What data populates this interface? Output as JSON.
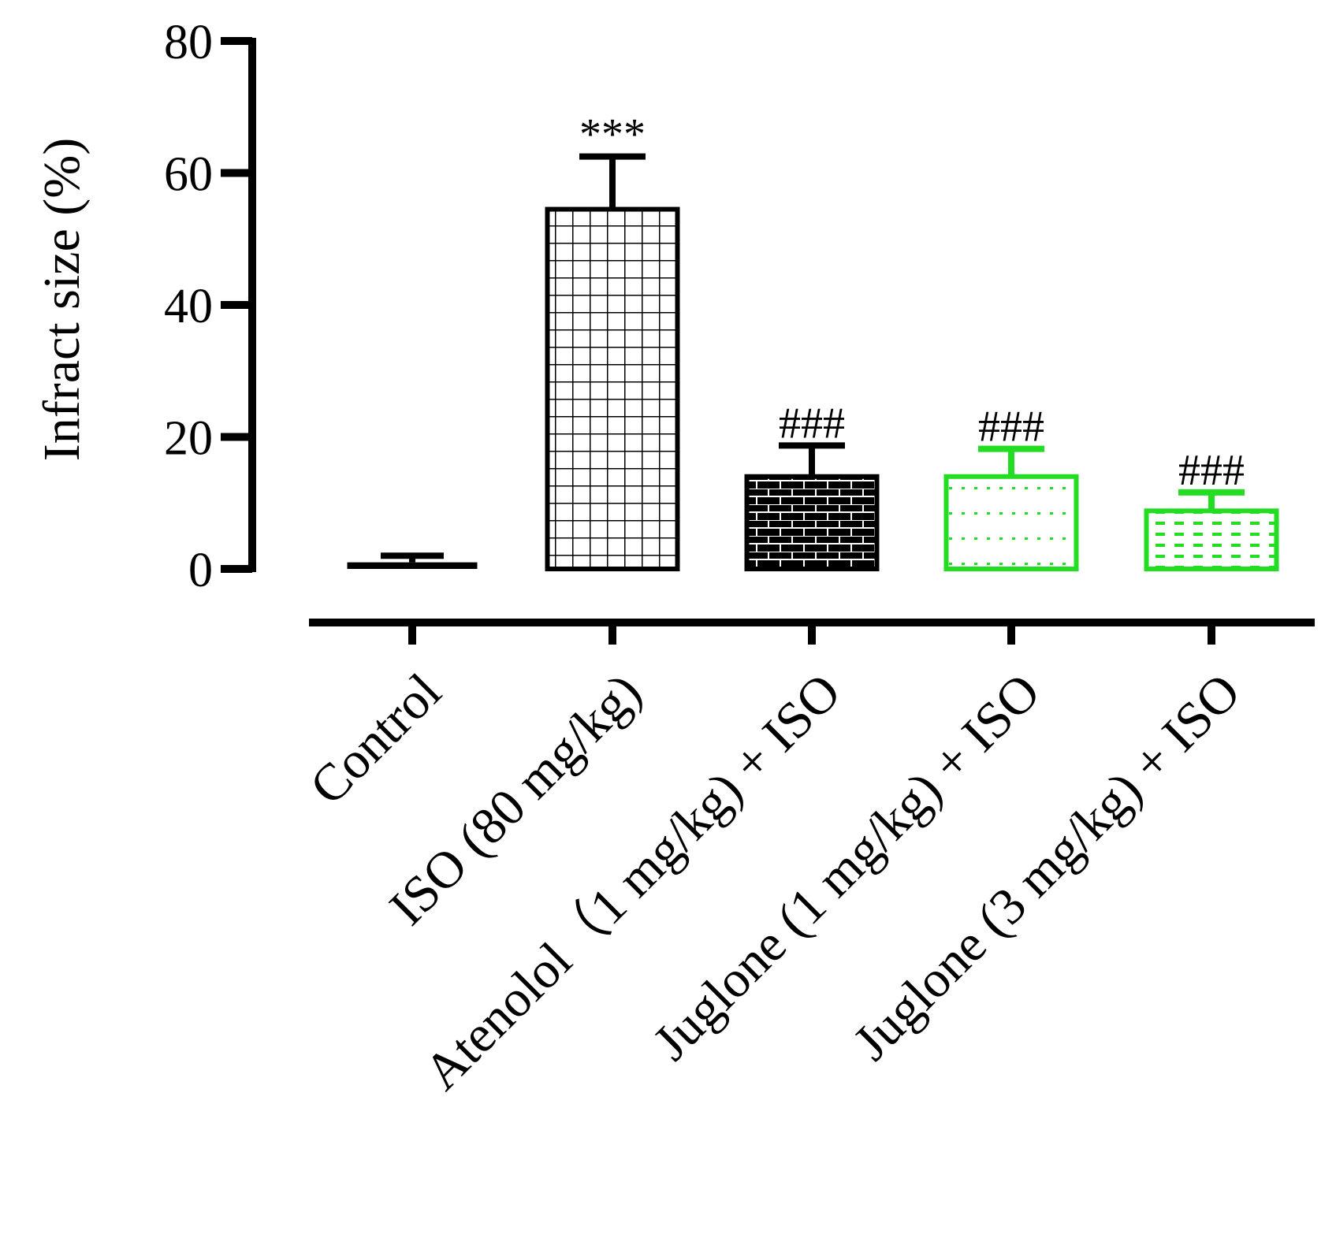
{
  "chart_data": {
    "type": "bar",
    "title": "",
    "xlabel": "",
    "ylabel": "Infract size (%)",
    "ylim": [
      0,
      80
    ],
    "yticks": [
      0,
      20,
      40,
      60,
      80
    ],
    "categories": [
      "Control",
      "ISO (80 mg/kg)",
      "Atenolol（1 mg/kg) + ISO",
      "Juglone (1 mg/kg) + ISO",
      "Juglone (3 mg/kg) + ISO"
    ],
    "values": [
      1.0,
      54.5,
      14.0,
      14.0,
      8.8
    ],
    "errors": [
      1.0,
      8.0,
      4.7,
      4.2,
      2.8
    ],
    "significance": [
      "",
      "***",
      "###",
      "###",
      "###"
    ],
    "colors": [
      "#000000",
      "#000000",
      "#000000",
      "#22dd22",
      "#22dd22"
    ],
    "patterns": [
      "solid",
      "grid",
      "brick",
      "dots",
      "dashes"
    ]
  }
}
